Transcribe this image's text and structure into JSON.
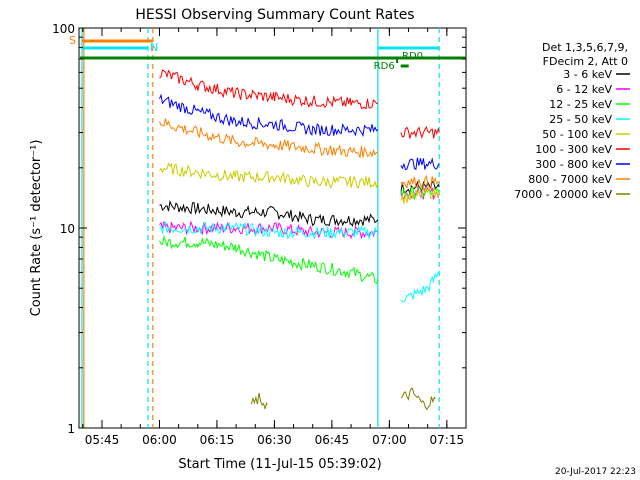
{
  "chart_data": {
    "type": "line",
    "title": "HESSI Observing Summary Count Rates",
    "xlabel": "Start Time (11-Jul-15 05:39:02)",
    "ylabel": "Count Rate (s⁻¹ detector⁻¹)",
    "yscale": "log",
    "ylim": [
      1,
      100
    ],
    "xlim": [
      "05:39",
      "07:20"
    ],
    "x_ticks": [
      "05:45",
      "06:00",
      "06:15",
      "06:30",
      "06:45",
      "07:00",
      "07:15"
    ],
    "y_ticks": [
      "1",
      "10",
      "100"
    ],
    "legend_header": [
      "Det 1,3,5,6,7,9,",
      "FDecim 2, Att 0"
    ],
    "legend_position": "right",
    "markers": {
      "S": "S",
      "N": "N",
      "RD6": "RD6",
      "RD0": "RD0"
    },
    "series": [
      {
        "name": "3 - 6 keV",
        "color": "#000000",
        "segments": [
          {
            "x": [
              "06:00",
              "06:10",
              "06:20",
              "06:30",
              "06:40",
              "06:50",
              "06:57"
            ],
            "y": [
              13,
              12.5,
              12,
              12,
              11,
              11,
              11
            ]
          },
          {
            "x": [
              "07:03",
              "07:10",
              "07:13"
            ],
            "y": [
              16,
              16,
              16
            ]
          }
        ]
      },
      {
        "name": "6 - 12 keV",
        "color": "#ff00ff",
        "segments": [
          {
            "x": [
              "06:00",
              "06:10",
              "06:20",
              "06:30",
              "06:40",
              "06:50",
              "06:57"
            ],
            "y": [
              10,
              10,
              10,
              10,
              9.5,
              9.5,
              9.5
            ]
          },
          {
            "x": [
              "07:03",
              "07:10",
              "07:13"
            ],
            "y": [
              15,
              15,
              15
            ]
          }
        ]
      },
      {
        "name": "12 - 25 keV",
        "color": "#00ff00",
        "segments": [
          {
            "x": [
              "06:00",
              "06:10",
              "06:20",
              "06:30",
              "06:40",
              "06:50",
              "06:57"
            ],
            "y": [
              8.5,
              8.5,
              8,
              7,
              6.5,
              6,
              5.5
            ]
          },
          {
            "x": [
              "07:03",
              "07:10",
              "07:13"
            ],
            "y": [
              15,
              15,
              15
            ]
          }
        ]
      },
      {
        "name": "25 - 50 keV",
        "color": "#00ffff",
        "segments": [
          {
            "x": [
              "06:00",
              "06:10",
              "06:20",
              "06:30",
              "06:40",
              "06:50",
              "06:57"
            ],
            "y": [
              10,
              10,
              10,
              9.5,
              9.5,
              9.5,
              9.5
            ]
          },
          {
            "x": [
              "07:03",
              "07:05",
              "07:10",
              "07:13"
            ],
            "y": [
              4.5,
              4.5,
              5,
              6
            ]
          }
        ]
      },
      {
        "name": "50 - 100 keV",
        "color": "#cccc00",
        "segments": [
          {
            "x": [
              "06:00",
              "06:10",
              "06:20",
              "06:30",
              "06:40",
              "06:50",
              "06:57"
            ],
            "y": [
              20,
              19,
              18,
              18,
              17,
              17,
              17
            ]
          },
          {
            "x": [
              "07:03",
              "07:10",
              "07:13"
            ],
            "y": [
              14,
              15,
              15
            ]
          }
        ]
      },
      {
        "name": "100 - 300 keV",
        "color": "#ff0000",
        "segments": [
          {
            "x": [
              "06:00",
              "06:10",
              "06:20",
              "06:30",
              "06:40",
              "06:50",
              "06:57"
            ],
            "y": [
              60,
              52,
              47,
              45,
              43,
              42,
              42
            ]
          },
          {
            "x": [
              "07:03",
              "07:10",
              "07:13"
            ],
            "y": [
              30,
              30,
              30
            ]
          }
        ]
      },
      {
        "name": "300 - 800 keV",
        "color": "#0000ff",
        "segments": [
          {
            "x": [
              "06:00",
              "06:10",
              "06:20",
              "06:30",
              "06:40",
              "06:50",
              "06:57"
            ],
            "y": [
              44,
              38,
              34,
              33,
              31,
              31,
              31
            ]
          },
          {
            "x": [
              "07:03",
              "07:10",
              "07:13"
            ],
            "y": [
              21,
              21,
              21
            ]
          }
        ]
      },
      {
        "name": "800 - 7000 keV",
        "color": "#ff8000",
        "segments": [
          {
            "x": [
              "06:00",
              "06:10",
              "06:20",
              "06:30",
              "06:40",
              "06:50",
              "06:57"
            ],
            "y": [
              34,
              30,
              27,
              26,
              25,
              24,
              24
            ]
          },
          {
            "x": [
              "07:03",
              "07:10",
              "07:13"
            ],
            "y": [
              17,
              17,
              17
            ]
          }
        ]
      },
      {
        "name": "7000 - 20000 keV",
        "color": "#808000",
        "segments": [
          {
            "x": [
              "06:24",
              "06:26",
              "06:28"
            ],
            "y": [
              1.3,
              1.4,
              1.3
            ]
          },
          {
            "x": [
              "07:03",
              "07:06",
              "07:09",
              "07:12"
            ],
            "y": [
              1.4,
              1.5,
              1.3,
              1.4
            ]
          }
        ]
      }
    ]
  },
  "footer": {
    "timestamp": "20-Jul-2017 22:23"
  }
}
